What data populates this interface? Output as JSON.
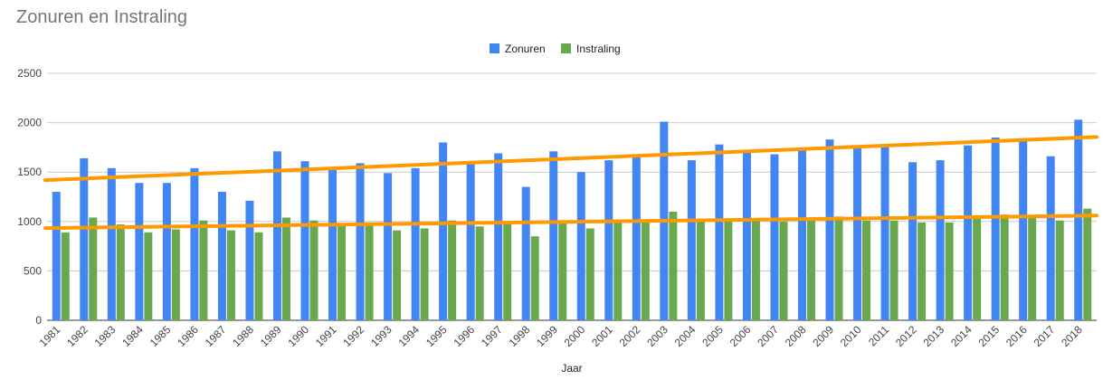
{
  "chart_data": {
    "type": "bar",
    "title": "Zonuren en Instraling",
    "xlabel": "Jaar",
    "ylabel": "",
    "ylim": [
      0,
      2500
    ],
    "yticks": [
      0,
      500,
      1000,
      1500,
      2000,
      2500
    ],
    "grid": true,
    "legend_position": "top-center",
    "categories": [
      "1981",
      "1982",
      "1983",
      "1984",
      "1985",
      "1986",
      "1987",
      "1988",
      "1989",
      "1990",
      "1991",
      "1992",
      "1993",
      "1994",
      "1995",
      "1996",
      "1997",
      "1998",
      "1999",
      "2000",
      "2001",
      "2002",
      "2003",
      "2004",
      "2005",
      "2006",
      "2007",
      "2008",
      "2009",
      "2010",
      "2011",
      "2012",
      "2013",
      "2014",
      "2015",
      "2016",
      "2017",
      "2018"
    ],
    "series": [
      {
        "name": "Zonuren",
        "color": "#4285f4",
        "values": [
          1300,
          1640,
          1540,
          1390,
          1390,
          1540,
          1300,
          1210,
          1710,
          1610,
          1530,
          1590,
          1490,
          1540,
          1800,
          1600,
          1690,
          1350,
          1710,
          1500,
          1620,
          1680,
          2010,
          1620,
          1780,
          1700,
          1680,
          1730,
          1830,
          1760,
          1780,
          1600,
          1620,
          1770,
          1850,
          1810,
          1660,
          2030
        ]
      },
      {
        "name": "Instraling",
        "color": "#6aa84f",
        "values": [
          890,
          1040,
          970,
          890,
          920,
          1010,
          910,
          890,
          1040,
          1010,
          970,
          990,
          910,
          930,
          1010,
          950,
          990,
          850,
          990,
          930,
          1000,
          1010,
          1100,
          1000,
          1010,
          1010,
          1000,
          1010,
          1050,
          1010,
          1010,
          990,
          990,
          1050,
          1070,
          1040,
          1010,
          1130
        ]
      }
    ],
    "trendlines": [
      {
        "series": "Zonuren",
        "color": "#ff9900",
        "start": [
          1981,
          1425
        ],
        "end": [
          2018,
          1850
        ]
      },
      {
        "series": "Instraling",
        "color": "#ff9900",
        "start": [
          1981,
          935
        ],
        "end": [
          2018,
          1058
        ]
      }
    ]
  }
}
